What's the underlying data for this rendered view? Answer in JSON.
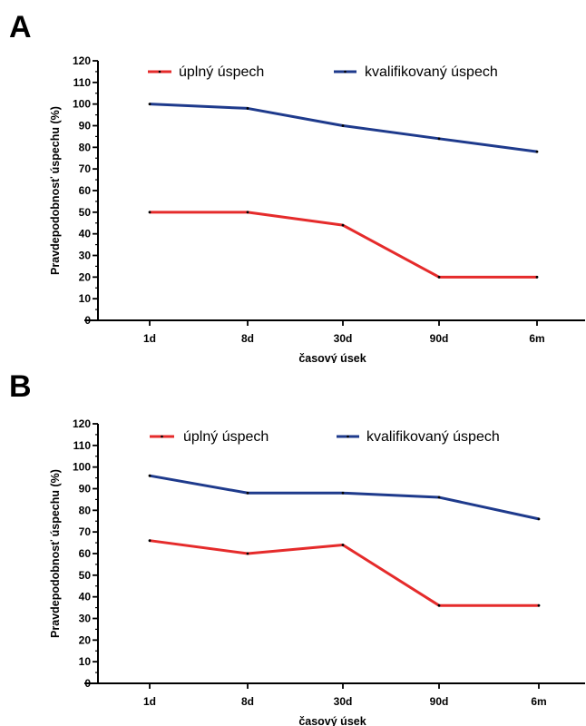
{
  "chart_data": [
    {
      "panel": "A",
      "type": "line",
      "categories": [
        "1d",
        "8d",
        "30d",
        "90d",
        "6m"
      ],
      "series": [
        {
          "name": "úplný úspech",
          "color": "#e52b2b",
          "values": [
            50,
            50,
            44,
            20,
            20
          ]
        },
        {
          "name": "kvalifikovaný úspech",
          "color": "#1e3a8c",
          "values": [
            100,
            98,
            90,
            84,
            78
          ]
        }
      ],
      "xlabel": "časový úsek",
      "ylabel": "Pravdepodobnosť úspechu (%)",
      "ylim": [
        0,
        120
      ],
      "yticks": [
        0,
        10,
        20,
        30,
        40,
        50,
        60,
        70,
        80,
        90,
        100,
        110,
        120
      ],
      "legend": "top",
      "grid": false
    },
    {
      "panel": "B",
      "type": "line",
      "categories": [
        "1d",
        "8d",
        "30d",
        "90d",
        "6m"
      ],
      "series": [
        {
          "name": "úplný úspech",
          "color": "#e52b2b",
          "values": [
            66,
            60,
            64,
            36,
            36
          ]
        },
        {
          "name": "kvalifikovaný úspech",
          "color": "#1e3a8c",
          "values": [
            96,
            88,
            88,
            86,
            76
          ]
        }
      ],
      "xlabel": "časový úsek",
      "ylabel": "Pravdepodobnosť úspechu (%)",
      "ylim": [
        0,
        120
      ],
      "yticks": [
        0,
        10,
        20,
        30,
        40,
        50,
        60,
        70,
        80,
        90,
        100,
        110,
        120
      ],
      "legend": "top",
      "grid": false
    }
  ]
}
